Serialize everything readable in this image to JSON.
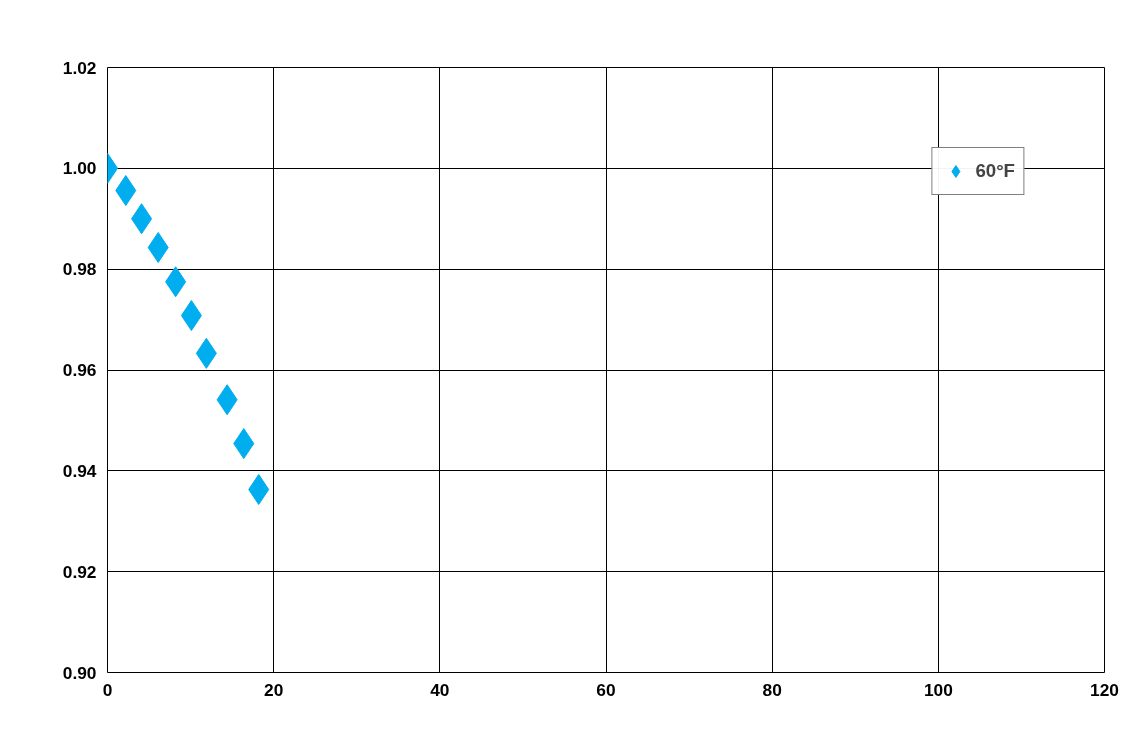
{
  "chart_data": {
    "type": "scatter",
    "marker": "diamond",
    "grid": true,
    "legend": "top right",
    "x": [
      0,
      2.2,
      4.1,
      6.1,
      8.2,
      10.1,
      11.9,
      14.4,
      16.4,
      18.2
    ],
    "series": [
      {
        "name": "60°F",
        "color": "#00aeef",
        "values": [
          1.0,
          0.9956,
          0.99,
          0.9843,
          0.9775,
          0.9708,
          0.9633,
          0.9541,
          0.9454,
          0.9363
        ]
      }
    ],
    "xlim": [
      0,
      120
    ],
    "xticks": [
      0,
      20,
      40,
      60,
      80,
      100,
      120
    ],
    "ylim": [
      0.9,
      1.02
    ],
    "yticks": [
      {
        "value": 0.9,
        "label": "0.90"
      },
      {
        "value": 0.92,
        "label": "0.92"
      },
      {
        "value": 0.94,
        "label": "0.94"
      },
      {
        "value": 0.96,
        "label": "0.96"
      },
      {
        "value": 0.98,
        "label": "0.98"
      },
      {
        "value": 1.0,
        "label": "1.00"
      },
      {
        "value": 1.02,
        "label": "1.02"
      }
    ]
  }
}
